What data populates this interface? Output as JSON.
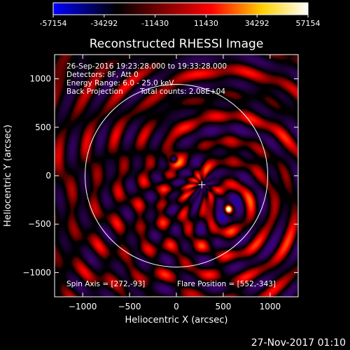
{
  "footer": {
    "date": "27-Nov-2017 01:10"
  },
  "colorbar": {
    "ticks": [
      "-57154",
      "-34292",
      "-11430",
      "11430",
      "34292",
      "57154"
    ],
    "stops": [
      "#0000ff",
      "#000000",
      "#ff0000",
      "#ffd000",
      "#ffffff"
    ]
  },
  "info": {
    "time_range": "26-Sep-2016 19:23:28.000 to 19:33:28.000",
    "detectors": "Detectors: 8F, Att 0",
    "energy": "Energy Range: 6.0 - 25.0 keV",
    "method": "Back Projection",
    "counts": "Total counts: 2.08E+04",
    "spin_axis": "Spin Axis = [272,-93]",
    "flare_position": "Flare Position = [552,-343]"
  },
  "chart_data": {
    "type": "heatmap",
    "title": "Reconstructed RHESSI Image",
    "xlabel": "Heliocentric X (arcsec)",
    "ylabel": "Heliocentric Y (arcsec)",
    "xlim": [
      -1300,
      1300
    ],
    "ylim": [
      -1250,
      1250
    ],
    "xticks": [
      -1000,
      -500,
      0,
      500,
      1000
    ],
    "yticks": [
      -1000,
      -500,
      0,
      500,
      1000
    ],
    "xtick_labels": [
      "−1000",
      "−500",
      "0",
      "500",
      "1000"
    ],
    "ytick_labels": [
      "−1000",
      "−500",
      "0",
      "500",
      "1000"
    ],
    "value_range": [
      -57154,
      57154
    ],
    "solar_limb_radius": 975,
    "spin_axis": [
      272,
      -93
    ],
    "sources": [
      {
        "x": 552,
        "y": -343,
        "value": 57154
      },
      {
        "x": -30,
        "y": 170,
        "value": -57154
      }
    ],
    "grid": false
  }
}
